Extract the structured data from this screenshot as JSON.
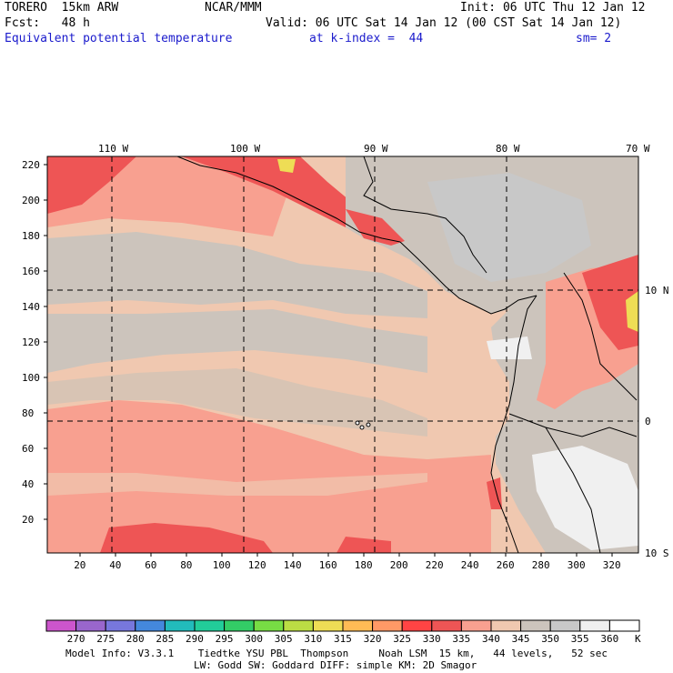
{
  "header": {
    "model": "TORERO  15km ARW",
    "org": "NCAR/MMM",
    "init": "Init: 06 UTC Thu 12 Jan 12",
    "fcst": "Fcst:   48 h",
    "valid": "Valid: 06 UTC Sat 14 Jan 12 (00 CST Sat 14 Jan 12)",
    "field": "Equivalent potential temperature",
    "level": "at k-index =  44",
    "smooth": "sm= 2"
  },
  "map": {
    "lon_labels": [
      "110 W",
      "100 W",
      "90 W",
      "80 W",
      "70 W"
    ],
    "lat_labels": [
      "10 N",
      "0",
      "10 S"
    ],
    "y_ticks": [
      "220",
      "200",
      "180",
      "160",
      "140",
      "120",
      "100",
      "80",
      "60",
      "40",
      "20"
    ],
    "x_ticks": [
      "20",
      "40",
      "60",
      "80",
      "100",
      "120",
      "140",
      "160",
      "180",
      "200",
      "220",
      "240",
      "260",
      "280",
      "300",
      "320"
    ]
  },
  "legend": {
    "unit": "K",
    "labels": [
      "270",
      "275",
      "280",
      "285",
      "290",
      "295",
      "300",
      "305",
      "310",
      "315",
      "320",
      "325",
      "330",
      "335",
      "340",
      "345",
      "350",
      "355",
      "360"
    ],
    "colors": [
      "#cc55cc",
      "#9966cc",
      "#7777dd",
      "#4488dd",
      "#22bbbb",
      "#22cc99",
      "#33cc66",
      "#77dd44",
      "#bbdd44",
      "#eedd55",
      "#ffbb55",
      "#ff9966",
      "#ff4444",
      "#ee5555",
      "#f8a090",
      "#f0c8b0",
      "#ccc4bc",
      "#c8c8c8",
      "#f0f0f0",
      "#ffffff"
    ]
  },
  "footer": {
    "line1": "Model Info: V3.3.1    Tiedtke YSU PBL  Thompson     Noah LSM  15 km,   44 levels,   52 sec",
    "line2": "LW: Godd SW: Goddard DIFF: simple KM: 2D Smagor"
  }
}
